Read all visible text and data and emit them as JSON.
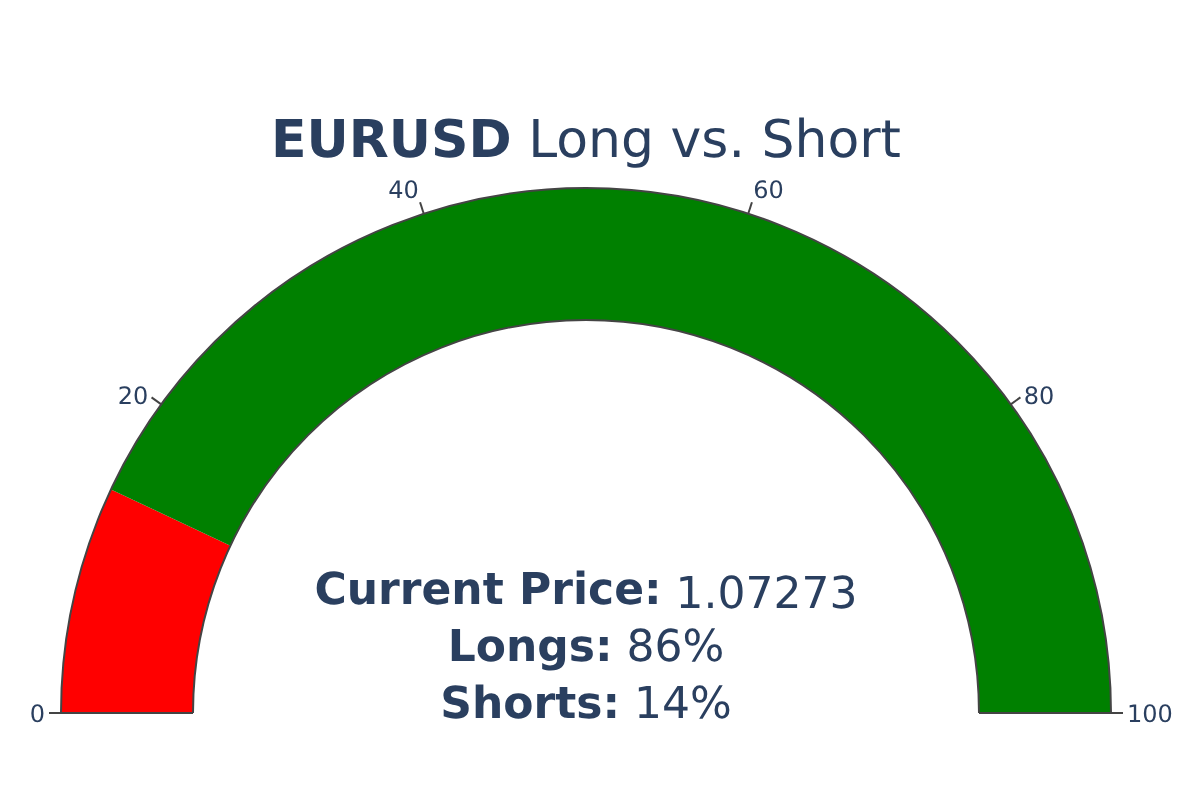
{
  "chart_data": {
    "type": "donut",
    "title": "EURUSD Long vs. Short",
    "categories": [
      null,
      null
    ],
    "values": [
      14,
      86
    ],
    "colors": [
      "#ff0000",
      "#008000"
    ],
    "annotations": [
      {
        "text": "0"
      },
      {
        "text": "20"
      },
      {
        "text": "40"
      },
      {
        "text": "60"
      },
      {
        "text": "80"
      },
      {
        "text": "100"
      },
      "Current Price: 1.07273",
      "Longs: 86%",
      "Shorts: 14%"
    ]
  }
}
